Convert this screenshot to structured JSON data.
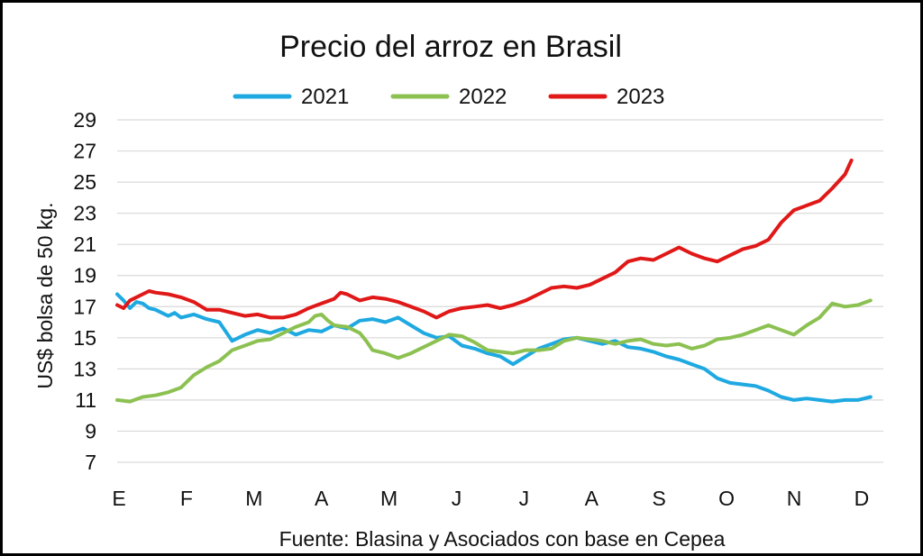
{
  "chart_data": {
    "type": "line",
    "title": "Precio del arroz en Brasil",
    "ylabel": "US$ bolsa de 50 kg.",
    "source": "Fuente: Blasina y Asociados con base en Cepea",
    "categories": [
      "E",
      "F",
      "M",
      "A",
      "M",
      "J",
      "J",
      "A",
      "S",
      "O",
      "N",
      "D"
    ],
    "yticks": [
      7,
      9,
      11,
      13,
      15,
      17,
      19,
      21,
      23,
      25,
      27,
      29
    ],
    "ylim": [
      7,
      29
    ],
    "grid": true,
    "legend_position": "top-center",
    "series": [
      {
        "name": "2021",
        "color": "#1fa9e1",
        "x": [
          0.0,
          0.1,
          0.2,
          0.3,
          0.4,
          0.5,
          0.6,
          0.7,
          0.8,
          0.9,
          1.0,
          1.2,
          1.4,
          1.6,
          1.8,
          2.0,
          2.2,
          2.4,
          2.6,
          2.8,
          3.0,
          3.2,
          3.4,
          3.6,
          3.8,
          4.0,
          4.2,
          4.4,
          4.6,
          4.8,
          5.0,
          5.2,
          5.4,
          5.6,
          5.8,
          6.0,
          6.2,
          6.4,
          6.6,
          6.8,
          7.0,
          7.2,
          7.4,
          7.6,
          7.8,
          8.0,
          8.2,
          8.4,
          8.6,
          8.8,
          9.0,
          9.2,
          9.4,
          9.6,
          9.8,
          10.0,
          10.2,
          10.4,
          10.6,
          10.8,
          11.0,
          11.2,
          11.4,
          11.6,
          11.8
        ],
        "values": [
          17.8,
          17.4,
          16.9,
          17.3,
          17.2,
          16.9,
          16.8,
          16.6,
          16.4,
          16.6,
          16.3,
          16.5,
          16.2,
          16.0,
          14.8,
          15.2,
          15.5,
          15.3,
          15.6,
          15.2,
          15.5,
          15.4,
          15.8,
          15.6,
          16.1,
          16.2,
          16.0,
          16.3,
          15.8,
          15.3,
          15.0,
          15.1,
          14.5,
          14.3,
          14.0,
          13.8,
          13.3,
          13.8,
          14.3,
          14.6,
          14.9,
          15.0,
          14.8,
          14.6,
          14.8,
          14.4,
          14.3,
          14.1,
          13.8,
          13.6,
          13.3,
          13.0,
          12.4,
          12.1,
          12.0,
          11.9,
          11.6,
          11.2,
          11.0,
          11.1,
          11.0,
          10.9,
          11.0,
          11.0,
          11.2
        ]
      },
      {
        "name": "2022",
        "color": "#8cc152",
        "x": [
          0.0,
          0.2,
          0.4,
          0.6,
          0.8,
          1.0,
          1.2,
          1.4,
          1.6,
          1.8,
          2.0,
          2.2,
          2.4,
          2.6,
          2.8,
          3.0,
          3.1,
          3.2,
          3.3,
          3.4,
          3.6,
          3.8,
          3.9,
          4.0,
          4.2,
          4.4,
          4.6,
          4.8,
          5.0,
          5.2,
          5.4,
          5.6,
          5.8,
          6.0,
          6.2,
          6.4,
          6.6,
          6.8,
          7.0,
          7.2,
          7.4,
          7.6,
          7.8,
          8.0,
          8.2,
          8.4,
          8.6,
          8.8,
          9.0,
          9.2,
          9.4,
          9.6,
          9.8,
          10.0,
          10.2,
          10.4,
          10.6,
          10.8,
          11.0,
          11.2,
          11.4,
          11.6,
          11.8
        ],
        "values": [
          11.0,
          10.9,
          11.2,
          11.3,
          11.5,
          11.8,
          12.6,
          13.1,
          13.5,
          14.2,
          14.5,
          14.8,
          14.9,
          15.3,
          15.7,
          16.0,
          16.4,
          16.5,
          16.1,
          15.8,
          15.7,
          15.3,
          14.8,
          14.2,
          14.0,
          13.7,
          14.0,
          14.4,
          14.8,
          15.2,
          15.1,
          14.7,
          14.2,
          14.1,
          14.0,
          14.2,
          14.2,
          14.3,
          14.8,
          15.0,
          14.9,
          14.8,
          14.6,
          14.8,
          14.9,
          14.6,
          14.5,
          14.6,
          14.3,
          14.5,
          14.9,
          15.0,
          15.2,
          15.5,
          15.8,
          15.5,
          15.2,
          15.8,
          16.3,
          17.2,
          17.0,
          17.1,
          17.4
        ]
      },
      {
        "name": "2023",
        "color": "#e01818",
        "x": [
          0.0,
          0.1,
          0.2,
          0.3,
          0.4,
          0.5,
          0.6,
          0.8,
          1.0,
          1.2,
          1.4,
          1.6,
          1.8,
          2.0,
          2.2,
          2.4,
          2.6,
          2.8,
          3.0,
          3.2,
          3.4,
          3.5,
          3.6,
          3.8,
          4.0,
          4.2,
          4.4,
          4.6,
          4.8,
          5.0,
          5.2,
          5.4,
          5.6,
          5.8,
          6.0,
          6.2,
          6.4,
          6.6,
          6.8,
          7.0,
          7.2,
          7.4,
          7.6,
          7.8,
          8.0,
          8.2,
          8.4,
          8.6,
          8.8,
          9.0,
          9.2,
          9.4,
          9.6,
          9.8,
          10.0,
          10.2,
          10.4,
          10.6,
          10.8,
          11.0,
          11.2,
          11.4,
          11.5
        ],
        "values": [
          17.1,
          16.9,
          17.4,
          17.6,
          17.8,
          18.0,
          17.9,
          17.8,
          17.6,
          17.3,
          16.8,
          16.8,
          16.6,
          16.4,
          16.5,
          16.3,
          16.3,
          16.5,
          16.9,
          17.2,
          17.5,
          17.9,
          17.8,
          17.4,
          17.6,
          17.5,
          17.3,
          17.0,
          16.7,
          16.3,
          16.7,
          16.9,
          17.0,
          17.1,
          16.9,
          17.1,
          17.4,
          17.8,
          18.2,
          18.3,
          18.2,
          18.4,
          18.8,
          19.2,
          19.9,
          20.1,
          20.0,
          20.4,
          20.8,
          20.4,
          20.1,
          19.9,
          20.3,
          20.7,
          20.9,
          21.3,
          22.4,
          23.2,
          23.5,
          23.8,
          24.6,
          25.5,
          26.4
        ]
      }
    ]
  }
}
